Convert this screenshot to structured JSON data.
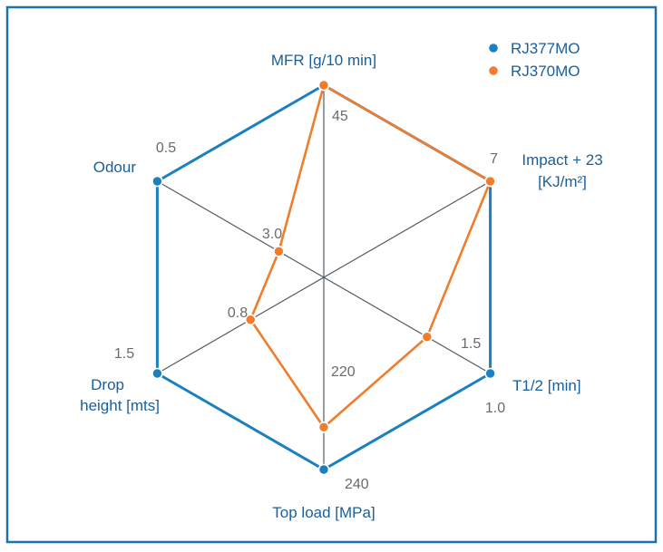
{
  "colors": {
    "frame": "#1a73ad",
    "axis": "#4f5d66",
    "series_a": "#1a80c0",
    "series_b": "#ef7d2d",
    "axis_label": "#1a5f9a",
    "tick_label": "#6b6b6b"
  },
  "chart_data": {
    "type": "radar",
    "axes": [
      {
        "label": "MFR [g/10 min]",
        "tick_min": "",
        "tick_max": "45"
      },
      {
        "label": "Impact + 23 [KJ/m²]",
        "tick_min": "",
        "tick_max": "7"
      },
      {
        "label": "T1/2 [min]",
        "tick_min": "1.5",
        "tick_max": "1.0"
      },
      {
        "label": "Top load [MPa]",
        "tick_min": "220",
        "tick_max": "240"
      },
      {
        "label": "Drop height [mts]",
        "tick_min": "0.8",
        "tick_max": "1.5"
      },
      {
        "label": "Odour",
        "tick_min": "3.0",
        "tick_max": "0.5"
      }
    ],
    "series": [
      {
        "name": "RJ377MO",
        "values": [
          1.0,
          1.0,
          1.0,
          1.0,
          1.0,
          1.0
        ]
      },
      {
        "name": "RJ370MO",
        "values": [
          1.0,
          1.0,
          0.62,
          0.78,
          0.44,
          0.27
        ]
      }
    ],
    "legend": "top-right"
  }
}
